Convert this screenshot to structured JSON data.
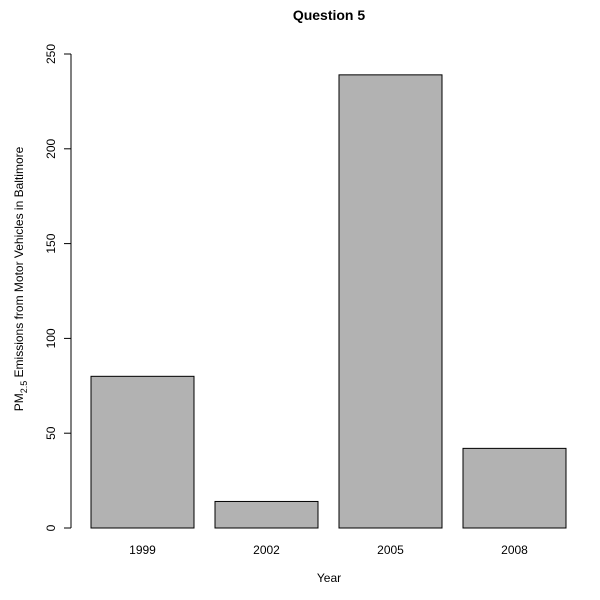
{
  "chart_data": {
    "type": "bar",
    "title": "Question 5",
    "xlabel": "Year",
    "ylabel": {
      "prefix": "PM",
      "subscript": "2.5",
      "suffix": " Emissions from Motor Vehicles in Baltimore"
    },
    "categories": [
      "1999",
      "2002",
      "2005",
      "2008"
    ],
    "values": [
      80,
      14,
      239,
      42
    ],
    "ylim": [
      0,
      250
    ],
    "yticks": [
      "0",
      "50",
      "100",
      "150",
      "200",
      "250"
    ],
    "bar_color": "#b2b2b2",
    "grid": false,
    "legend": "none"
  }
}
